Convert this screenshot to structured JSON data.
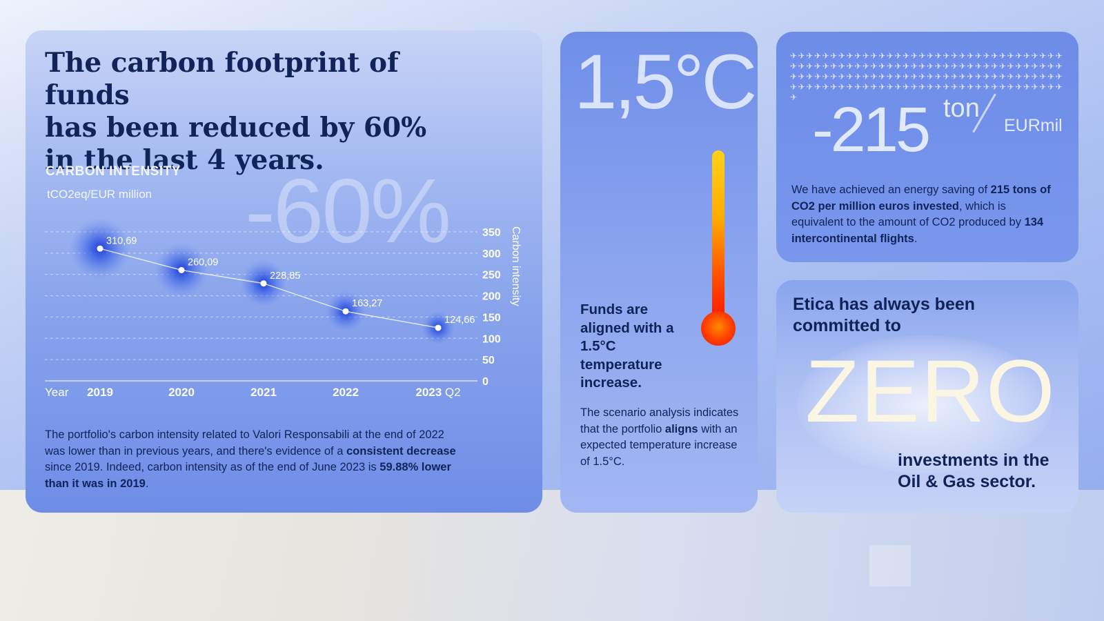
{
  "main_card": {
    "headline_line1": "The carbon footprint of funds",
    "headline_line2": "has been reduced by 60%",
    "headline_line3": "in the last 4 years.",
    "chart_title": "CARBON INTENSITY",
    "chart_unit": "tCO2eq/EUR million",
    "big_percent": "-60%",
    "description": {
      "part1": "The portfolio's carbon intensity related to Valori Responsabili at the end of 2022 was lower than in previous years, and there's evidence of a ",
      "bold1": "consistent decrease",
      "part2": " since 2019. Indeed, carbon intensity as of the end of June 2023 is ",
      "bold2": "59.88% lower than it was in 2019",
      "part3": "."
    }
  },
  "chart_data": {
    "type": "line",
    "title": "CARBON INTENSITY",
    "subtitle": "tCO2eq/EUR million",
    "xlabel": "Year",
    "ylabel": "Carbon intensity",
    "categories": [
      "2019",
      "2020",
      "2021",
      "2022",
      "2023 Q2"
    ],
    "values": [
      310.69,
      260.09,
      228.85,
      163.27,
      124.66
    ],
    "data_labels": [
      "310,69",
      "260,09",
      "228,85",
      "163,27",
      "124,66"
    ],
    "yticks": [
      "0",
      "50",
      "100",
      "150",
      "200",
      "250",
      "300",
      "350"
    ],
    "ylim": [
      0,
      350
    ],
    "grid": true,
    "axis_side": "right"
  },
  "temp_card": {
    "big_value": "1,5°C",
    "claim": "Funds are aligned with a 1.5°C temperature increase.",
    "desc_part1": "The scenario analysis indicates that the portfolio ",
    "desc_bold": "aligns",
    "desc_part2": " with an expected temperature increase of 1.5°C."
  },
  "energy_card": {
    "planes": "✈✈✈✈✈✈✈✈✈✈✈✈✈✈✈✈✈✈✈✈✈✈✈✈✈✈✈✈✈✈✈✈✈✈✈✈✈✈✈✈✈✈✈✈✈✈✈✈✈✈✈✈✈✈✈✈✈✈✈✈✈✈✈✈✈✈✈✈✈✈✈✈✈✈✈✈✈✈✈✈✈✈✈✈✈✈✈✈✈✈✈✈✈✈✈✈✈✈✈✈✈✈✈✈✈✈✈✈✈✈✈✈✈✈✈✈✈✈✈✈✈✈✈✈✈✈✈✈✈✈✈✈✈✈✈✈✈",
    "number": "-215",
    "unit_top": "ton",
    "unit_bottom": "EURmil",
    "desc_part1": "We have achieved an energy saving of ",
    "desc_bold": "215 tons of CO2 per million euros invested",
    "desc_part2": ", which is equivalent to the amount of CO2 produced by ",
    "desc_bold2": "134 intercontinental flights",
    "desc_part3": "."
  },
  "zero_card": {
    "intro": "Etica has always been committed to",
    "word": "ZERO",
    "outro": "investments in the Oil & Gas sector."
  },
  "colors": {
    "navy_text": "#10245a",
    "dot_glow": "#1f3fd8",
    "thermo_top": "#ffd21a",
    "thermo_bottom": "#ff1500",
    "zero_word": "#fbf6e3"
  }
}
